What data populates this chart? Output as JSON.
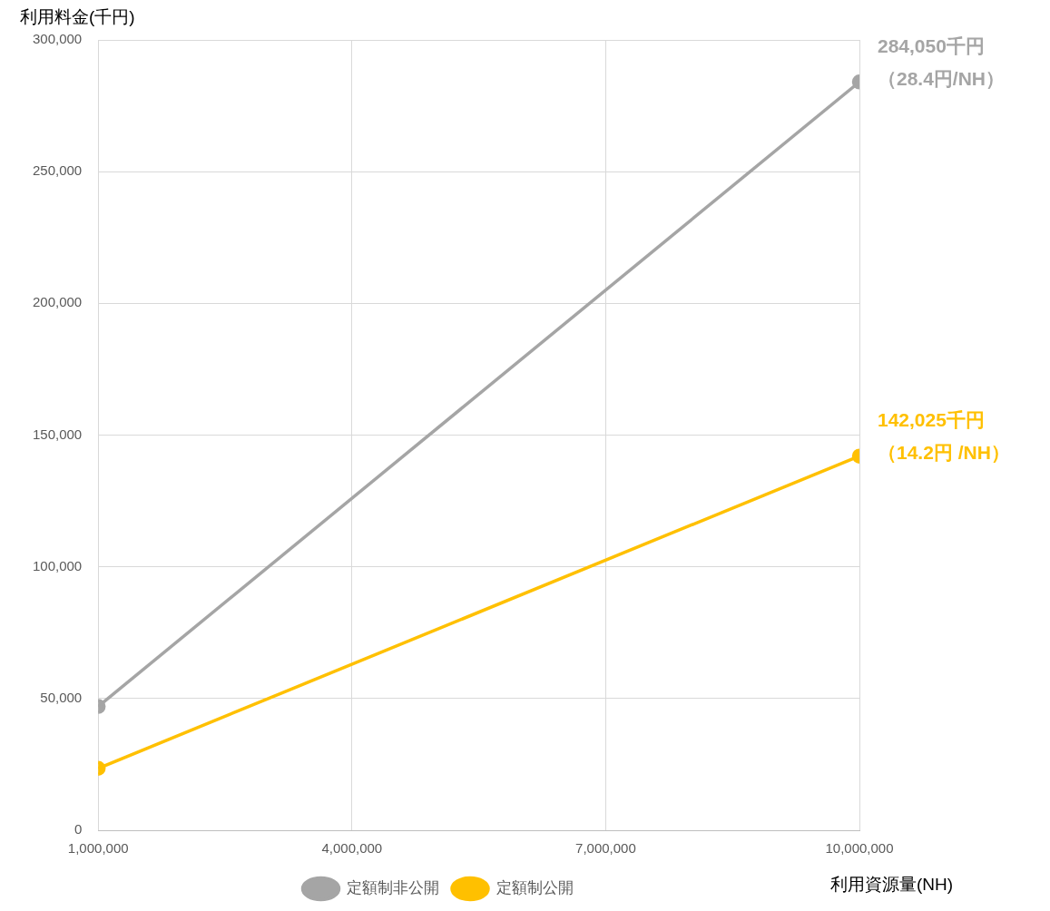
{
  "chart_data": {
    "type": "line",
    "xlabel": "利用資源量(NH)",
    "ylabel": "利用料金(千円)",
    "x": [
      1000000,
      10000000
    ],
    "series": [
      {
        "name": "定額制非公開",
        "color": "#a5a5a5",
        "values": [
          47000,
          284050
        ]
      },
      {
        "name": "定額制公開",
        "color": "#ffc000",
        "values": [
          23500,
          142025
        ]
      }
    ],
    "xlim": [
      1000000,
      10000000
    ],
    "xticks": [
      {
        "value": 1000000,
        "label": "1,000,000"
      },
      {
        "value": 4000000,
        "label": "4,000,000"
      },
      {
        "value": 7000000,
        "label": "7,000,000"
      },
      {
        "value": 10000000,
        "label": "10,000,000"
      }
    ],
    "ylim": [
      0,
      300000
    ],
    "yticks": [
      {
        "value": 0,
        "label": "0"
      },
      {
        "value": 50000,
        "label": "50,000"
      },
      {
        "value": 100000,
        "label": "100,000"
      },
      {
        "value": 150000,
        "label": "150,000"
      },
      {
        "value": 200000,
        "label": "200,000"
      },
      {
        "value": 250000,
        "label": "250,000"
      },
      {
        "value": 300000,
        "label": "300,000"
      }
    ],
    "annotations": [
      "284,050千円",
      "（28.4円/NH）",
      "142,025千円",
      "（14.2円 /NH）"
    ],
    "grid": true,
    "legend": "bottom",
    "marker": "circle",
    "line_style": "solid"
  }
}
